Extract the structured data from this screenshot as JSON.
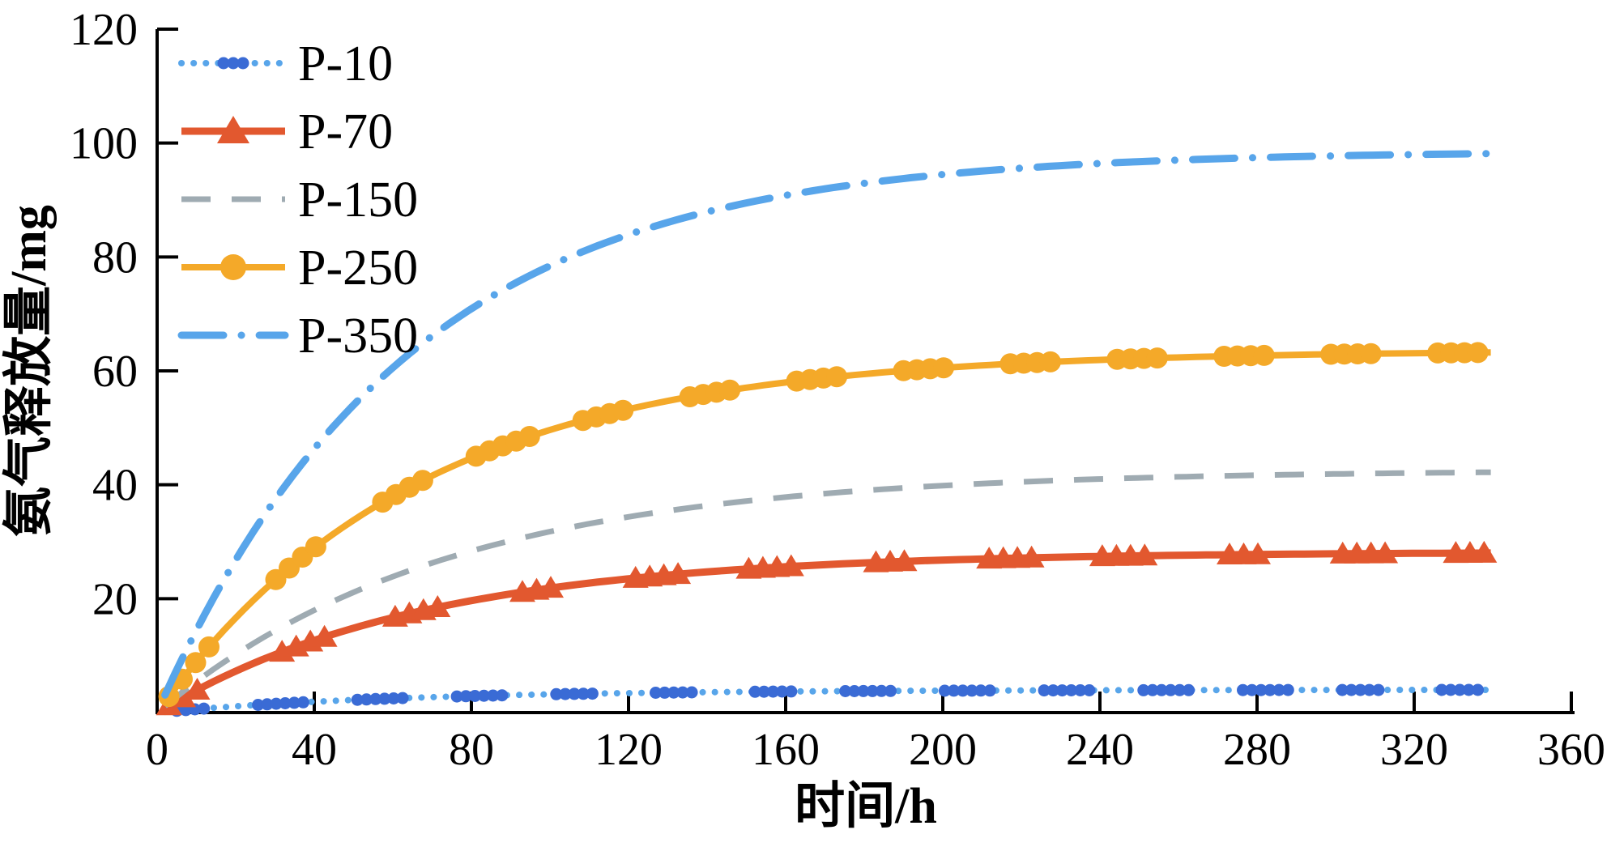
{
  "figure_title": "",
  "chart_data": {
    "type": "line",
    "title": "",
    "xlabel": "时间/h",
    "ylabel": "氨气释放量/mg",
    "xlim": [
      0,
      360
    ],
    "ylim": [
      0,
      120
    ],
    "xticks": [
      0,
      40,
      80,
      120,
      160,
      200,
      240,
      280,
      320,
      360
    ],
    "yticks": [
      20,
      40,
      60,
      80,
      100,
      120
    ],
    "grid": false,
    "legend_position": "upper-left",
    "x": [
      0,
      20,
      40,
      60,
      80,
      100,
      120,
      140,
      160,
      180,
      200,
      220,
      240,
      260,
      280,
      300,
      320,
      340
    ],
    "series": [
      {
        "name": "P-10",
        "style": "dotted",
        "marker": "dot",
        "line_color": "#58A5EA",
        "marker_color": "#3A6BD5",
        "line_width": 8,
        "model": {
          "A": 4.0,
          "tau": 62,
          "t_end": 340
        },
        "marker_clusters": {
          "start": 5,
          "step": 2.3,
          "period": 25,
          "window": 13
        },
        "values": [
          0,
          1.1,
          1.9,
          2.5,
          2.9,
          3.2,
          3.4,
          3.6,
          3.7,
          3.8,
          3.8,
          3.9,
          3.9,
          3.9,
          4.0,
          4.0,
          4.0,
          4.0
        ]
      },
      {
        "name": "P-70",
        "style": "solid",
        "marker": "triangle",
        "line_color": "#E2582F",
        "marker_color": "#E2582F",
        "line_width": 9,
        "model": {
          "A": 28.2,
          "tau": 67,
          "t_end": 340
        },
        "marker_clusters": {
          "start": 3,
          "step": 3.6,
          "period": 30,
          "window": 13
        },
        "values": [
          0,
          7.3,
          12.7,
          16.7,
          19.7,
          21.9,
          23.5,
          24.7,
          25.6,
          26.3,
          26.8,
          27.1,
          27.4,
          27.6,
          27.8,
          27.9,
          28.0,
          28.0
        ]
      },
      {
        "name": "P-150",
        "style": "dashed",
        "marker": "none",
        "line_color": "#9FABB2",
        "marker_color": "#9FABB2",
        "line_width": 7,
        "model": {
          "A": 42.6,
          "tau": 73,
          "t_end": 340
        },
        "marker_clusters": null,
        "values": [
          0,
          10.2,
          18.0,
          23.9,
          28.3,
          31.8,
          34.4,
          36.3,
          37.8,
          39.0,
          39.8,
          40.5,
          41.0,
          41.4,
          41.7,
          41.9,
          42.1,
          42.2
        ]
      },
      {
        "name": "P-250",
        "style": "solid",
        "marker": "circle",
        "line_color": "#F4A929",
        "marker_color": "#F4A929",
        "line_width": 8,
        "model": {
          "A": 63.6,
          "tau": 66,
          "t_end": 340
        },
        "marker_clusters": {
          "start": 3,
          "step": 3.4,
          "period": 27,
          "window": 14
        },
        "values": [
          0,
          16.6,
          28.9,
          38.0,
          44.7,
          49.6,
          53.3,
          56.0,
          58.0,
          59.4,
          60.5,
          61.3,
          61.9,
          62.4,
          62.7,
          62.9,
          63.1,
          63.2
        ]
      },
      {
        "name": "P-350",
        "style": "dashdot",
        "marker": "none",
        "line_color": "#58A5EA",
        "marker_color": "#58A5EA",
        "line_width": 9,
        "model": {
          "A": 98.6,
          "tau": 63,
          "t_end": 340
        },
        "marker_clusters": null,
        "values": [
          0,
          26.8,
          46.3,
          60.6,
          70.9,
          78.4,
          83.9,
          87.9,
          90.8,
          92.9,
          94.5,
          95.6,
          96.4,
          97.0,
          97.4,
          97.8,
          98.0,
          98.2
        ]
      }
    ],
    "legend_labels": [
      "P-10",
      "P-70",
      "P-150",
      "P-250",
      "P-350"
    ],
    "axis_color": "#000000"
  }
}
